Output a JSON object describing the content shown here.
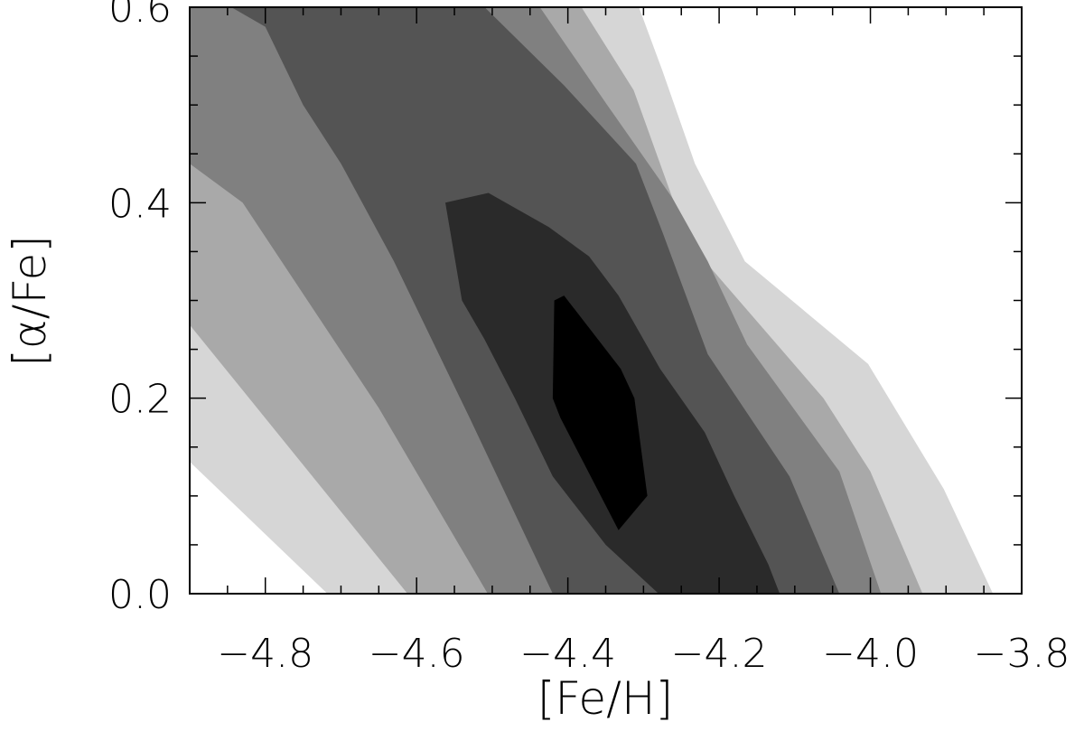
{
  "chart_data": {
    "type": "contour",
    "xlabel": "[Fe/H]",
    "ylabel": "[α/Fe]",
    "xlim": [
      -4.9,
      -3.8
    ],
    "ylim": [
      0.0,
      0.6
    ],
    "x_ticks": [
      {
        "value": -4.8,
        "label": "−4.8"
      },
      {
        "value": -4.6,
        "label": "−4.6"
      },
      {
        "value": -4.4,
        "label": "−4.4"
      },
      {
        "value": -4.2,
        "label": "−4.2"
      },
      {
        "value": -4.0,
        "label": "−4.0"
      },
      {
        "value": -3.8,
        "label": "−3.8"
      }
    ],
    "y_ticks": [
      {
        "value": 0.0,
        "label": "0.0"
      },
      {
        "value": 0.2,
        "label": "0.2"
      },
      {
        "value": 0.4,
        "label": "0.4"
      },
      {
        "value": 0.6,
        "label": "0.6"
      }
    ],
    "x_minor_step": 0.05,
    "y_minor_step": 0.05,
    "levels": [
      {
        "name": "level-1",
        "color": "#d6d6d6",
        "polygon": [
          [
            -4.9,
            0.6
          ],
          [
            -4.306,
            0.6
          ],
          [
            -4.275,
            0.535
          ],
          [
            -4.232,
            0.44
          ],
          [
            -4.166,
            0.34
          ],
          [
            -4.003,
            0.235
          ],
          [
            -3.903,
            0.107
          ],
          [
            -3.838,
            0.0
          ],
          [
            -4.718,
            0.0
          ],
          [
            -4.9,
            0.135
          ]
        ]
      },
      {
        "name": "level-2",
        "color": "#a9a9a9",
        "polygon": [
          [
            -4.9,
            0.6
          ],
          [
            -4.382,
            0.6
          ],
          [
            -4.313,
            0.515
          ],
          [
            -4.241,
            0.36
          ],
          [
            -4.062,
            0.2
          ],
          [
            -4.0,
            0.125
          ],
          [
            -3.931,
            0.0
          ],
          [
            -4.612,
            0.0
          ],
          [
            -4.9,
            0.275
          ]
        ]
      },
      {
        "name": "level-3",
        "color": "#808080",
        "polygon": [
          [
            -4.9,
            0.6
          ],
          [
            -4.437,
            0.6
          ],
          [
            -4.348,
            0.5
          ],
          [
            -4.262,
            0.405
          ],
          [
            -4.215,
            0.34
          ],
          [
            -4.163,
            0.255
          ],
          [
            -4.041,
            0.125
          ],
          [
            -3.986,
            0.0
          ],
          [
            -4.506,
            0.0
          ],
          [
            -4.65,
            0.19
          ],
          [
            -4.83,
            0.4
          ],
          [
            -4.9,
            0.44
          ]
        ]
      },
      {
        "name": "level-4",
        "color": "#545454",
        "polygon": [
          [
            -4.856,
            0.6
          ],
          [
            -4.51,
            0.6
          ],
          [
            -4.405,
            0.52
          ],
          [
            -4.31,
            0.44
          ],
          [
            -4.275,
            0.37
          ],
          [
            -4.215,
            0.245
          ],
          [
            -4.107,
            0.12
          ],
          [
            -4.041,
            0.0
          ],
          [
            -4.42,
            0.0
          ],
          [
            -4.53,
            0.18
          ],
          [
            -4.63,
            0.34
          ],
          [
            -4.7,
            0.44
          ],
          [
            -4.75,
            0.5
          ],
          [
            -4.8,
            0.58
          ],
          [
            -4.845,
            0.6
          ]
        ]
      },
      {
        "name": "level-5",
        "color": "#2a2a2a",
        "polygon": [
          [
            -4.562,
            0.4
          ],
          [
            -4.505,
            0.41
          ],
          [
            -4.425,
            0.375
          ],
          [
            -4.372,
            0.345
          ],
          [
            -4.333,
            0.305
          ],
          [
            -4.278,
            0.23
          ],
          [
            -4.219,
            0.165
          ],
          [
            -4.18,
            0.1
          ],
          [
            -4.135,
            0.03
          ],
          [
            -4.12,
            0.0
          ],
          [
            -4.28,
            0.0
          ],
          [
            -4.35,
            0.05
          ],
          [
            -4.42,
            0.12
          ],
          [
            -4.47,
            0.2
          ],
          [
            -4.51,
            0.26
          ],
          [
            -4.54,
            0.3
          ]
        ]
      },
      {
        "name": "level-6",
        "color": "#000000",
        "polygon": [
          [
            -4.418,
            0.3
          ],
          [
            -4.405,
            0.305
          ],
          [
            -4.33,
            0.23
          ],
          [
            -4.312,
            0.2
          ],
          [
            -4.295,
            0.1
          ],
          [
            -4.333,
            0.065
          ],
          [
            -4.41,
            0.18
          ],
          [
            -4.42,
            0.2
          ]
        ]
      }
    ]
  }
}
